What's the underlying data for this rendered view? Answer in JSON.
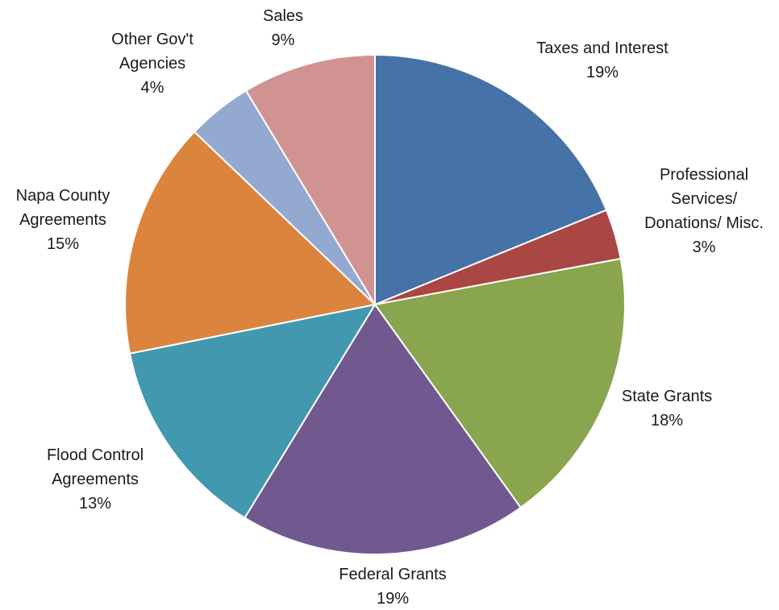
{
  "chart_data": {
    "type": "pie",
    "start": "top, clockwise",
    "slices": [
      {
        "name": "Taxes and Interest",
        "label_lines": [
          "Taxes and Interest"
        ],
        "pct_label": "19%",
        "value": 19.2,
        "color": "#4572A7"
      },
      {
        "name": "Professional Services/ Donations/ Misc.",
        "label_lines": [
          "Professional",
          "Services/",
          "Donations/ Misc."
        ],
        "pct_label": "3%",
        "value": 3.3,
        "color": "#AA4643"
      },
      {
        "name": "State Grants",
        "label_lines": [
          "State Grants"
        ],
        "pct_label": "18%",
        "value": 18.4,
        "color": "#89A54E"
      },
      {
        "name": "Federal Grants",
        "label_lines": [
          "Federal Grants"
        ],
        "pct_label": "19%",
        "value": 19.0,
        "color": "#71588F"
      },
      {
        "name": "Flood Control Agreements",
        "label_lines": [
          "Flood Control",
          "Agreements"
        ],
        "pct_label": "13%",
        "value": 13.4,
        "color": "#4198AF"
      },
      {
        "name": "Napa County Agreements",
        "label_lines": [
          "Napa County",
          "Agreements"
        ],
        "pct_label": "15%",
        "value": 15.6,
        "color": "#DB843D"
      },
      {
        "name": "Other Gov't Agencies",
        "label_lines": [
          "Other Gov't",
          "Agencies"
        ],
        "pct_label": "4%",
        "value": 4.3,
        "color": "#93A9CF"
      },
      {
        "name": "Sales",
        "label_lines": [
          "Sales"
        ],
        "pct_label": "9%",
        "value": 8.8,
        "color": "#D19392"
      }
    ]
  }
}
